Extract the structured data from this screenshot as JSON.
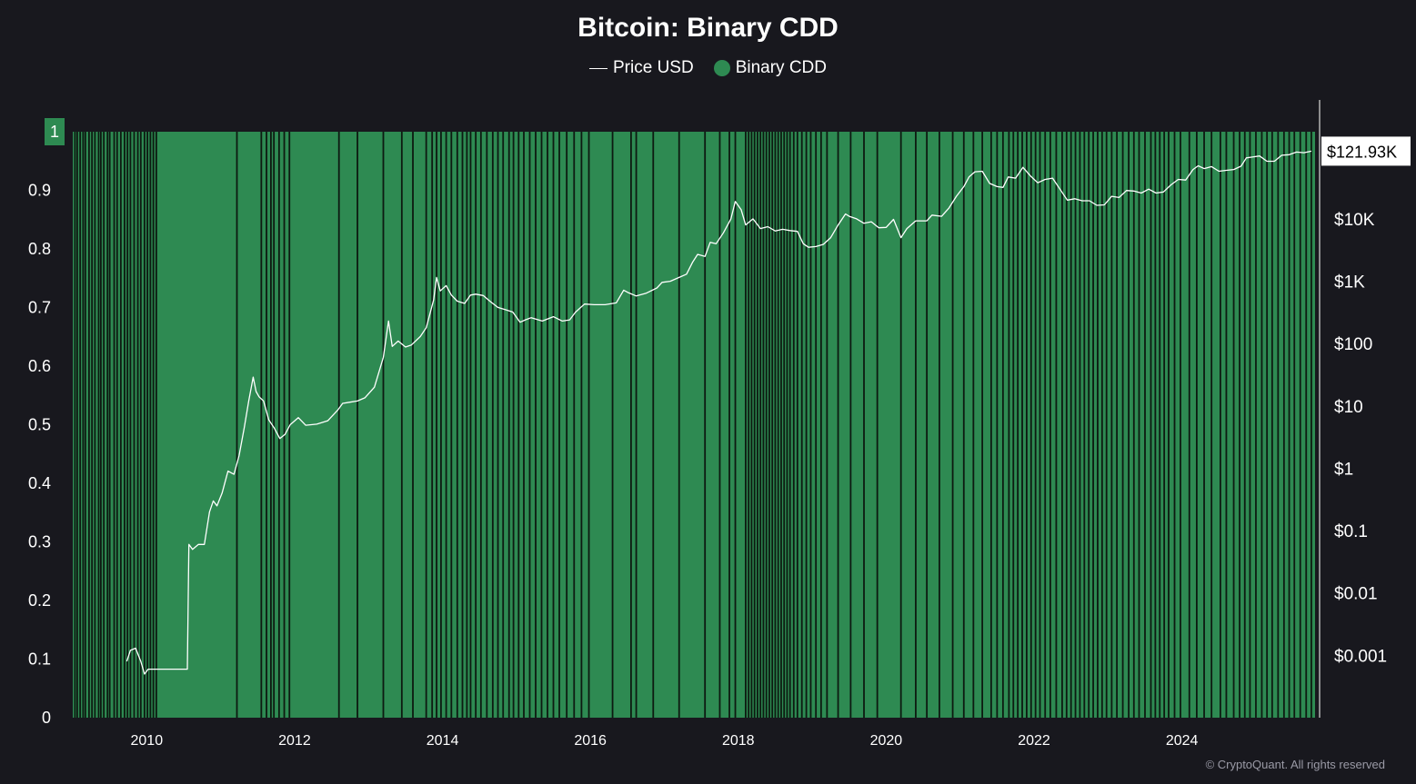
{
  "colors": {
    "background": "#18181e",
    "binary_cdd": "#2e8a52",
    "binary_cdd_marker": "#2e8a52",
    "zero_gap": "#0d1a11",
    "price_line": "#ffffff",
    "axis_text": "#ffffff"
  },
  "legend": {
    "price_label": "Price USD",
    "cdd_label": "Binary CDD"
  },
  "watermark": "© CryptoQuant. All rights reserved",
  "chart_data": {
    "type": "bar",
    "title": "Bitcoin: Binary CDD",
    "x_range": [
      2009.0,
      2025.8
    ],
    "x_ticks": [
      "2010",
      "2012",
      "2014",
      "2016",
      "2018",
      "2020",
      "2022",
      "2024"
    ],
    "x_tick_values": [
      2010,
      2012,
      2014,
      2016,
      2018,
      2020,
      2022,
      2024
    ],
    "left_axis": {
      "ylim": [
        0,
        1
      ],
      "ticks": [
        "0",
        "0.1",
        "0.2",
        "0.3",
        "0.4",
        "0.5",
        "0.6",
        "0.7",
        "0.8",
        "0.9",
        "1"
      ],
      "current_marker": "1"
    },
    "right_axis": {
      "scale": "log",
      "ylim": [
        0.0001,
        250000
      ],
      "ticks": [
        "$0.001",
        "$0.01",
        "$0.1",
        "$1",
        "$10",
        "$100",
        "$1K",
        "$10K"
      ],
      "tick_values": [
        0.001,
        0.01,
        0.1,
        1,
        10,
        100,
        1000,
        10000
      ],
      "current_price_label": "$121.93K",
      "current_price_value": 121930
    },
    "series": [
      {
        "name": "Binary CDD",
        "kind": "binary_bars",
        "base_value": 1,
        "zero_periods": [
          2009.03,
          2009.06,
          2009.1,
          2009.14,
          2009.17,
          2009.22,
          2009.26,
          2009.3,
          2009.35,
          2009.38,
          2009.42,
          2009.47,
          2009.5,
          2009.56,
          2009.6,
          2009.65,
          2009.7,
          2009.74,
          2009.78,
          2009.83,
          2009.88,
          2009.92,
          2009.97,
          2010.01,
          2010.05,
          2010.09,
          2010.13,
          2011.22,
          2011.55,
          2011.62,
          2011.68,
          2011.72,
          2011.79,
          2011.86,
          2011.93,
          2012.6,
          2012.85,
          2013.2,
          2013.45,
          2013.6,
          2013.78,
          2013.86,
          2013.92,
          2013.98,
          2014.05,
          2014.12,
          2014.2,
          2014.27,
          2014.33,
          2014.38,
          2014.45,
          2014.52,
          2014.6,
          2014.68,
          2014.75,
          2014.82,
          2014.9,
          2014.96,
          2015.03,
          2015.1,
          2015.18,
          2015.26,
          2015.34,
          2015.42,
          2015.5,
          2015.58,
          2015.68,
          2015.78,
          2015.88,
          2015.98,
          2016.3,
          2016.55,
          2016.62,
          2016.85,
          2017.2,
          2017.55,
          2017.75,
          2017.88,
          2017.96,
          2018.1,
          2018.14,
          2018.18,
          2018.22,
          2018.26,
          2018.3,
          2018.34,
          2018.38,
          2018.42,
          2018.46,
          2018.5,
          2018.54,
          2018.58,
          2018.62,
          2018.66,
          2018.7,
          2018.75,
          2018.8,
          2018.86,
          2018.92,
          2018.98,
          2019.05,
          2019.12,
          2019.2,
          2019.35,
          2019.52,
          2019.7,
          2019.88,
          2020.2,
          2020.4,
          2020.55,
          2020.72,
          2020.9,
          2021.05,
          2021.18,
          2021.3,
          2021.42,
          2021.5,
          2021.58,
          2021.66,
          2021.72,
          2021.78,
          2021.84,
          2021.9,
          2021.96,
          2022.02,
          2022.08,
          2022.15,
          2022.22,
          2022.3,
          2022.38,
          2022.44,
          2022.5,
          2022.56,
          2022.62,
          2022.68,
          2022.74,
          2022.8,
          2022.86,
          2022.92,
          2022.98,
          2023.05,
          2023.12,
          2023.2,
          2023.28,
          2023.35,
          2023.42,
          2023.5,
          2023.58,
          2023.64,
          2023.7,
          2023.76,
          2023.82,
          2023.9,
          2023.98,
          2024.1,
          2024.2,
          2024.3,
          2024.4,
          2024.52,
          2024.6,
          2024.7,
          2024.78,
          2024.85,
          2024.92,
          2025.0,
          2025.08,
          2025.15,
          2025.22,
          2025.3,
          2025.38,
          2025.45,
          2025.52,
          2025.6,
          2025.68,
          2025.75
        ]
      },
      {
        "name": "Price USD",
        "kind": "line",
        "axis": "right",
        "points": [
          [
            2009.73,
            0.0008
          ],
          [
            2009.78,
            0.0012
          ],
          [
            2009.85,
            0.0013
          ],
          [
            2009.92,
            0.0008
          ],
          [
            2009.97,
            0.0005
          ],
          [
            2010.02,
            0.0006
          ],
          [
            2010.55,
            0.0006
          ],
          [
            2010.57,
            0.06
          ],
          [
            2010.62,
            0.05
          ],
          [
            2010.7,
            0.06
          ],
          [
            2010.78,
            0.06
          ],
          [
            2010.85,
            0.2
          ],
          [
            2010.9,
            0.3
          ],
          [
            2010.95,
            0.25
          ],
          [
            2011.02,
            0.4
          ],
          [
            2011.1,
            0.9
          ],
          [
            2011.18,
            0.8
          ],
          [
            2011.25,
            1.6
          ],
          [
            2011.32,
            4.5
          ],
          [
            2011.38,
            12
          ],
          [
            2011.44,
            29
          ],
          [
            2011.48,
            17
          ],
          [
            2011.52,
            14
          ],
          [
            2011.58,
            12
          ],
          [
            2011.65,
            6
          ],
          [
            2011.72,
            4.5
          ],
          [
            2011.8,
            3
          ],
          [
            2011.87,
            3.5
          ],
          [
            2011.94,
            5
          ],
          [
            2012.05,
            6.5
          ],
          [
            2012.15,
            4.9
          ],
          [
            2012.3,
            5.1
          ],
          [
            2012.45,
            5.8
          ],
          [
            2012.58,
            8.5
          ],
          [
            2012.65,
            11
          ],
          [
            2012.75,
            11.5
          ],
          [
            2012.85,
            12
          ],
          [
            2012.95,
            13.5
          ],
          [
            2013.08,
            20
          ],
          [
            2013.2,
            60
          ],
          [
            2013.27,
            230
          ],
          [
            2013.32,
            90
          ],
          [
            2013.4,
            110
          ],
          [
            2013.5,
            88
          ],
          [
            2013.58,
            95
          ],
          [
            2013.7,
            130
          ],
          [
            2013.78,
            180
          ],
          [
            2013.88,
            500
          ],
          [
            2013.92,
            1150
          ],
          [
            2013.97,
            700
          ],
          [
            2014.05,
            850
          ],
          [
            2014.12,
            600
          ],
          [
            2014.2,
            480
          ],
          [
            2014.3,
            440
          ],
          [
            2014.38,
            600
          ],
          [
            2014.45,
            620
          ],
          [
            2014.55,
            590
          ],
          [
            2014.65,
            470
          ],
          [
            2014.75,
            380
          ],
          [
            2014.85,
            350
          ],
          [
            2014.95,
            320
          ],
          [
            2015.05,
            220
          ],
          [
            2015.12,
            240
          ],
          [
            2015.2,
            260
          ],
          [
            2015.35,
            230
          ],
          [
            2015.5,
            270
          ],
          [
            2015.62,
            230
          ],
          [
            2015.72,
            240
          ],
          [
            2015.8,
            320
          ],
          [
            2015.92,
            430
          ],
          [
            2016.05,
            420
          ],
          [
            2016.2,
            420
          ],
          [
            2016.35,
            450
          ],
          [
            2016.45,
            720
          ],
          [
            2016.52,
            650
          ],
          [
            2016.62,
            580
          ],
          [
            2016.75,
            640
          ],
          [
            2016.9,
            780
          ],
          [
            2016.97,
            960
          ],
          [
            2017.08,
            1000
          ],
          [
            2017.2,
            1150
          ],
          [
            2017.3,
            1300
          ],
          [
            2017.38,
            2000
          ],
          [
            2017.45,
            2700
          ],
          [
            2017.55,
            2500
          ],
          [
            2017.62,
            4200
          ],
          [
            2017.7,
            4000
          ],
          [
            2017.8,
            6000
          ],
          [
            2017.9,
            10000
          ],
          [
            2017.96,
            19000
          ],
          [
            2018.04,
            14000
          ],
          [
            2018.1,
            8000
          ],
          [
            2018.2,
            10000
          ],
          [
            2018.3,
            7000
          ],
          [
            2018.4,
            7500
          ],
          [
            2018.5,
            6400
          ],
          [
            2018.6,
            6800
          ],
          [
            2018.7,
            6500
          ],
          [
            2018.8,
            6300
          ],
          [
            2018.88,
            4000
          ],
          [
            2018.95,
            3500
          ],
          [
            2019.05,
            3600
          ],
          [
            2019.15,
            3900
          ],
          [
            2019.25,
            5000
          ],
          [
            2019.35,
            8000
          ],
          [
            2019.45,
            12000
          ],
          [
            2019.5,
            11000
          ],
          [
            2019.6,
            10000
          ],
          [
            2019.7,
            8500
          ],
          [
            2019.8,
            9000
          ],
          [
            2019.9,
            7200
          ],
          [
            2020.0,
            7300
          ],
          [
            2020.1,
            9800
          ],
          [
            2020.2,
            5000
          ],
          [
            2020.28,
            7000
          ],
          [
            2020.4,
            9300
          ],
          [
            2020.55,
            9300
          ],
          [
            2020.62,
            11500
          ],
          [
            2020.75,
            11000
          ],
          [
            2020.85,
            15000
          ],
          [
            2020.95,
            23000
          ],
          [
            2021.05,
            33000
          ],
          [
            2021.12,
            47000
          ],
          [
            2021.2,
            57000
          ],
          [
            2021.3,
            58000
          ],
          [
            2021.4,
            37000
          ],
          [
            2021.5,
            33000
          ],
          [
            2021.58,
            32000
          ],
          [
            2021.65,
            47000
          ],
          [
            2021.75,
            45000
          ],
          [
            2021.85,
            67000
          ],
          [
            2021.95,
            49000
          ],
          [
            2022.05,
            38000
          ],
          [
            2022.15,
            43000
          ],
          [
            2022.25,
            45000
          ],
          [
            2022.35,
            30000
          ],
          [
            2022.45,
            20000
          ],
          [
            2022.55,
            21000
          ],
          [
            2022.65,
            19500
          ],
          [
            2022.75,
            19500
          ],
          [
            2022.85,
            16500
          ],
          [
            2022.95,
            16800
          ],
          [
            2023.05,
            23000
          ],
          [
            2023.15,
            22000
          ],
          [
            2023.25,
            28500
          ],
          [
            2023.35,
            28000
          ],
          [
            2023.45,
            26000
          ],
          [
            2023.55,
            30000
          ],
          [
            2023.65,
            26000
          ],
          [
            2023.75,
            27000
          ],
          [
            2023.85,
            35000
          ],
          [
            2023.95,
            43000
          ],
          [
            2024.05,
            42000
          ],
          [
            2024.15,
            62000
          ],
          [
            2024.22,
            71000
          ],
          [
            2024.3,
            64000
          ],
          [
            2024.4,
            69000
          ],
          [
            2024.5,
            58000
          ],
          [
            2024.6,
            60000
          ],
          [
            2024.7,
            62000
          ],
          [
            2024.8,
            70000
          ],
          [
            2024.87,
            95000
          ],
          [
            2024.95,
            98000
          ],
          [
            2025.05,
            102000
          ],
          [
            2025.15,
            84000
          ],
          [
            2025.25,
            84000
          ],
          [
            2025.35,
            105000
          ],
          [
            2025.45,
            107000
          ],
          [
            2025.55,
            118000
          ],
          [
            2025.65,
            115000
          ],
          [
            2025.75,
            121930
          ]
        ]
      }
    ]
  }
}
